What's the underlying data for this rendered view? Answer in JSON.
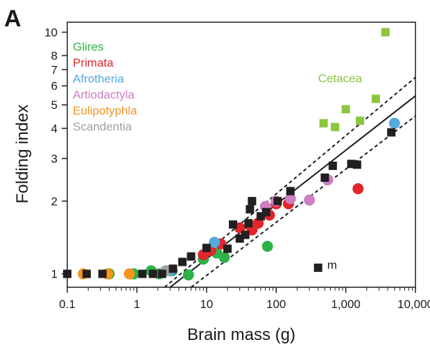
{
  "chart_data": {
    "type": "scatter",
    "panel_label": "A",
    "xlabel": "Brain mass (g)",
    "ylabel": "Folding index",
    "x_scale": "log",
    "y_scale": "log",
    "xlim": [
      0.1,
      10000
    ],
    "ylim": [
      0.88,
      11
    ],
    "x_ticks": [
      0.1,
      1,
      10,
      100,
      1000,
      10000
    ],
    "x_tick_labels": [
      "0.1",
      "1",
      "10",
      "100",
      "1,000",
      "10,000"
    ],
    "y_ticks": [
      1,
      2,
      3,
      4,
      5,
      6,
      7,
      8,
      10
    ],
    "y_tick_labels": [
      "1",
      "2",
      "3",
      "4",
      "5",
      "6",
      "7",
      "8",
      "10"
    ],
    "legend": [
      {
        "label": "Glires",
        "color": "#2db34a"
      },
      {
        "label": "Primata",
        "color": "#e2262c"
      },
      {
        "label": "Afrotheria",
        "color": "#55a9dd"
      },
      {
        "label": "Artiodactyla",
        "color": "#cc7fc3"
      },
      {
        "label": "Eulipotyphla",
        "color": "#f7941d"
      },
      {
        "label": "Scandentia",
        "color": "#a0a0a0"
      }
    ],
    "annotations": [
      {
        "text": "Cetacea",
        "color": "#8cc63f",
        "x": 400,
        "y": 6.2
      },
      {
        "text": "m",
        "color": "#1a1a1a",
        "x": 540,
        "y": 1.05
      }
    ],
    "fit_line": {
      "points": [
        [
          3.0,
          0.88
        ],
        [
          10000,
          5.45
        ]
      ]
    },
    "confidence_lines": [
      {
        "points": [
          [
            2.5,
            0.88
          ],
          [
            10000,
            6.5
          ]
        ]
      },
      {
        "points": [
          [
            6.0,
            0.88
          ],
          [
            10000,
            4.5
          ]
        ]
      }
    ],
    "series": [
      {
        "name": "Glires",
        "marker": "circle",
        "color": "#2db34a",
        "points": [
          [
            0.4,
            1.0
          ],
          [
            0.9,
            1.0
          ],
          [
            1.6,
            1.03
          ],
          [
            2.1,
            1.0
          ],
          [
            3.2,
            1.03
          ],
          [
            5.5,
            0.99
          ],
          [
            9,
            1.15
          ],
          [
            18,
            1.17
          ],
          [
            75,
            1.3
          ],
          [
            14,
            1.22
          ]
        ]
      },
      {
        "name": "Primata",
        "marker": "circle",
        "color": "#e2262c",
        "points": [
          [
            9,
            1.2
          ],
          [
            11.5,
            1.25
          ],
          [
            16,
            1.33
          ],
          [
            30,
            1.55
          ],
          [
            45,
            1.52
          ],
          [
            55,
            1.62
          ],
          [
            80,
            1.75
          ],
          [
            100,
            1.95
          ],
          [
            150,
            1.95
          ],
          [
            1500,
            2.25
          ]
        ]
      },
      {
        "name": "Afrotheria",
        "marker": "circle",
        "color": "#55a9dd",
        "points": [
          [
            3.0,
            1.03
          ],
          [
            13,
            1.35
          ],
          [
            5000,
            4.2
          ]
        ]
      },
      {
        "name": "Artiodactyla",
        "marker": "circle",
        "color": "#cc7fc3",
        "points": [
          [
            70,
            1.9
          ],
          [
            100,
            2.0
          ],
          [
            160,
            2.05
          ],
          [
            300,
            2.02
          ],
          [
            550,
            2.45
          ]
        ]
      },
      {
        "name": "Eulipotyphla",
        "marker": "circle",
        "color": "#f7941d",
        "points": [
          [
            0.17,
            1.0
          ],
          [
            0.38,
            1.0
          ],
          [
            0.78,
            1.0
          ]
        ]
      },
      {
        "name": "Scandentia",
        "marker": "circle",
        "color": "#a0a0a0",
        "points": [
          [
            2.6,
            1.03
          ]
        ]
      },
      {
        "name": "Cetacea",
        "marker": "square",
        "color": "#8cc63f",
        "points": [
          [
            480,
            4.2
          ],
          [
            700,
            4.05
          ],
          [
            1000,
            4.8
          ],
          [
            1600,
            4.3
          ],
          [
            2700,
            5.3
          ],
          [
            3700,
            10.0
          ]
        ]
      },
      {
        "name": "Other",
        "marker": "square",
        "color": "#231f20",
        "points": [
          [
            0.1,
            1.0
          ],
          [
            0.19,
            1.0
          ],
          [
            0.32,
            1.0
          ],
          [
            1.2,
            1.0
          ],
          [
            1.7,
            1.0
          ],
          [
            2.3,
            1.0
          ],
          [
            3.3,
            1.05
          ],
          [
            4.5,
            1.12
          ],
          [
            6.0,
            1.18
          ],
          [
            10,
            1.28
          ],
          [
            20,
            1.27
          ],
          [
            24,
            1.6
          ],
          [
            30,
            1.4
          ],
          [
            36,
            1.45
          ],
          [
            40,
            1.62
          ],
          [
            42,
            1.85
          ],
          [
            45,
            2.0
          ],
          [
            60,
            1.73
          ],
          [
            72,
            1.8
          ],
          [
            105,
            2.0
          ],
          [
            160,
            2.2
          ],
          [
            400,
            1.06
          ],
          [
            500,
            2.5
          ],
          [
            650,
            2.8
          ],
          [
            1200,
            2.85
          ],
          [
            1450,
            2.83
          ],
          [
            4500,
            3.85
          ]
        ]
      }
    ]
  }
}
